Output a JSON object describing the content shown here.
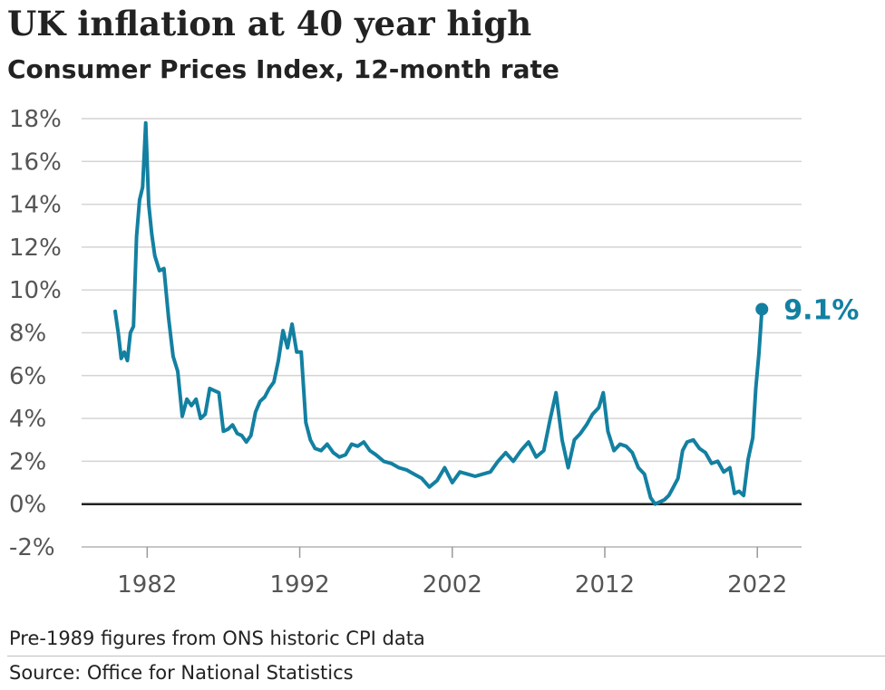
{
  "chart_data": {
    "type": "line",
    "title": "UK inflation at 40 year high",
    "subtitle": "Consumer Prices Index, 12-month rate",
    "xlabel": "",
    "ylabel": "",
    "xlim": [
      1977.7,
      2024.9
    ],
    "ylim": [
      -2,
      18
    ],
    "y_ticks": [
      18,
      16,
      14,
      12,
      10,
      8,
      6,
      4,
      2,
      0,
      -2
    ],
    "y_tick_labels": [
      "18%",
      "16%",
      "14%",
      "12%",
      "10%",
      "8%",
      "6%",
      "4%",
      "2%",
      "0%",
      "-2%"
    ],
    "x_ticks": [
      1982,
      1992,
      2002,
      2012,
      2022
    ],
    "x_tick_labels": [
      "1982",
      "1992",
      "2002",
      "2012",
      "2022"
    ],
    "grid": true,
    "zero_line": true,
    "line_color": "#1380a1",
    "series": [
      {
        "name": "",
        "x": [
          1979.9,
          1980.1,
          1980.3,
          1980.5,
          1980.7,
          1980.9,
          1981.1,
          1981.3,
          1981.5,
          1981.7,
          1981.9,
          1982.1,
          1982.3,
          1982.5,
          1982.8,
          1983.1,
          1983.4,
          1983.7,
          1984.0,
          1984.3,
          1984.6,
          1984.9,
          1985.2,
          1985.5,
          1985.8,
          1986.1,
          1986.4,
          1986.7,
          1987.0,
          1987.3,
          1987.6,
          1987.9,
          1988.2,
          1988.5,
          1988.8,
          1989.1,
          1989.4,
          1989.7,
          1990.0,
          1990.3,
          1990.6,
          1990.9,
          1991.2,
          1991.5,
          1991.8,
          1992.1,
          1992.4,
          1992.7,
          1993.0,
          1993.4,
          1993.8,
          1994.2,
          1994.6,
          1995.0,
          1995.4,
          1995.8,
          1996.2,
          1996.6,
          1997.0,
          1997.5,
          1998.0,
          1998.5,
          1999.0,
          1999.5,
          2000.0,
          2000.5,
          2001.0,
          2001.5,
          2002.0,
          2002.5,
          2003.0,
          2003.5,
          2004.0,
          2004.5,
          2005.0,
          2005.5,
          2006.0,
          2006.5,
          2007.0,
          2007.5,
          2008.0,
          2008.4,
          2008.8,
          2009.2,
          2009.6,
          2010.0,
          2010.4,
          2010.8,
          2011.2,
          2011.6,
          2011.9,
          2012.2,
          2012.6,
          2013.0,
          2013.4,
          2013.8,
          2014.2,
          2014.6,
          2015.0,
          2015.3,
          2015.6,
          2015.9,
          2016.2,
          2016.5,
          2016.8,
          2017.1,
          2017.4,
          2017.8,
          2018.2,
          2018.6,
          2019.0,
          2019.4,
          2019.8,
          2020.2,
          2020.5,
          2020.8,
          2021.1,
          2021.4,
          2021.7,
          2021.9,
          2022.1,
          2022.3
        ],
        "values": [
          9.0,
          8.0,
          6.8,
          7.1,
          6.7,
          8.0,
          8.3,
          12.5,
          14.2,
          14.8,
          17.8,
          14.0,
          12.6,
          11.6,
          10.9,
          11.0,
          8.7,
          6.9,
          6.2,
          4.1,
          4.9,
          4.6,
          4.9,
          4.0,
          4.2,
          5.4,
          5.3,
          5.2,
          3.4,
          3.5,
          3.7,
          3.3,
          3.2,
          2.9,
          3.2,
          4.3,
          4.8,
          5.0,
          5.4,
          5.7,
          6.7,
          8.1,
          7.3,
          8.4,
          7.1,
          7.1,
          3.8,
          3.0,
          2.6,
          2.5,
          2.8,
          2.4,
          2.2,
          2.3,
          2.8,
          2.7,
          2.9,
          2.5,
          2.3,
          2.0,
          1.9,
          1.7,
          1.6,
          1.4,
          1.2,
          0.8,
          1.1,
          1.7,
          1.0,
          1.5,
          1.4,
          1.3,
          1.4,
          1.5,
          2.0,
          2.4,
          2.0,
          2.5,
          2.9,
          2.2,
          2.5,
          3.9,
          5.2,
          3.0,
          1.7,
          3.0,
          3.3,
          3.7,
          4.2,
          4.5,
          5.2,
          3.4,
          2.5,
          2.8,
          2.7,
          2.4,
          1.7,
          1.4,
          0.3,
          0.0,
          0.1,
          0.2,
          0.4,
          0.8,
          1.2,
          2.5,
          2.9,
          3.0,
          2.6,
          2.4,
          1.9,
          2.0,
          1.5,
          1.7,
          0.5,
          0.6,
          0.4,
          2.1,
          3.1,
          5.4,
          7.0,
          9.1
        ]
      }
    ],
    "end_label": "9.1%"
  },
  "footer": {
    "note": "Pre-1989 figures from ONS historic CPI data",
    "source": "Source: Office for National Statistics"
  }
}
